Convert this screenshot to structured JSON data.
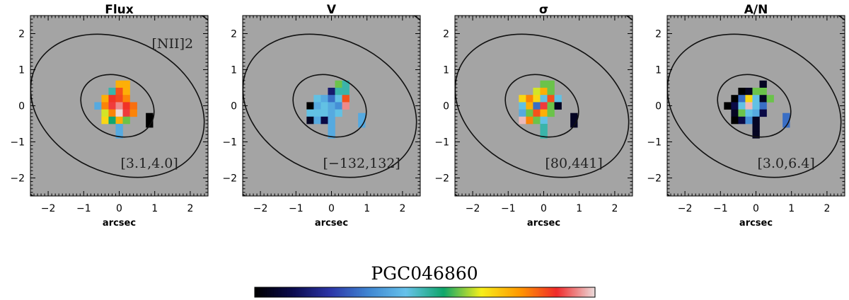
{
  "galaxy": "PGC046860",
  "colors": {
    "background_map": "#a4a4a4",
    "contour": "#111111",
    "colorbar_stops": [
      "#000000",
      "#0b0b4e",
      "#2c36a8",
      "#3f86d2",
      "#66c2ea",
      "#0ea66a",
      "#f6ef1b",
      "#ff9a00",
      "#f02a2a",
      "#ebd8d8"
    ]
  },
  "chart_data": [
    {
      "type": "heatmap",
      "title": "Flux",
      "corner_label": "[NII]2",
      "range_label": "[3.1,4.0]",
      "xlabel": "arcsec",
      "ylabel": "",
      "xlim": [
        -2.5,
        2.5
      ],
      "ylim": [
        -2.5,
        2.5
      ],
      "xticks": [
        "−2",
        "−1",
        "0",
        "1",
        "2"
      ],
      "yticks": [
        "2",
        "1",
        "0",
        "−1",
        "−2"
      ],
      "pixels": [
        {
          "x": 0.0,
          "y": 0.6,
          "v": 0.75
        },
        {
          "x": 0.2,
          "y": 0.6,
          "v": 0.75
        },
        {
          "x": -0.2,
          "y": 0.4,
          "v": 0.5
        },
        {
          "x": 0.0,
          "y": 0.4,
          "v": 0.85
        },
        {
          "x": 0.2,
          "y": 0.4,
          "v": 0.75
        },
        {
          "x": -0.4,
          "y": 0.2,
          "v": 0.75
        },
        {
          "x": -0.2,
          "y": 0.2,
          "v": 0.88
        },
        {
          "x": 0.0,
          "y": 0.2,
          "v": 0.86
        },
        {
          "x": 0.2,
          "y": 0.2,
          "v": 0.8
        },
        {
          "x": -0.6,
          "y": 0.0,
          "v": 0.4
        },
        {
          "x": -0.4,
          "y": 0.0,
          "v": 0.8
        },
        {
          "x": -0.2,
          "y": 0.0,
          "v": 0.9
        },
        {
          "x": 0.0,
          "y": 0.0,
          "v": 0.95
        },
        {
          "x": 0.2,
          "y": 0.0,
          "v": 0.88
        },
        {
          "x": 0.4,
          "y": 0.0,
          "v": 0.82
        },
        {
          "x": -0.4,
          "y": -0.2,
          "v": 0.65
        },
        {
          "x": -0.2,
          "y": -0.2,
          "v": 0.8
        },
        {
          "x": 0.0,
          "y": -0.2,
          "v": 1.0
        },
        {
          "x": 0.2,
          "y": -0.2,
          "v": 0.9
        },
        {
          "x": 0.4,
          "y": -0.2,
          "v": 0.8
        },
        {
          "x": 0.85,
          "y": -0.3,
          "v": 0.0
        },
        {
          "x": 0.85,
          "y": -0.5,
          "v": 0.0
        },
        {
          "x": -0.4,
          "y": -0.4,
          "v": 0.7
        },
        {
          "x": -0.2,
          "y": -0.4,
          "v": 0.55
        },
        {
          "x": 0.0,
          "y": -0.4,
          "v": 0.75
        },
        {
          "x": 0.2,
          "y": -0.4,
          "v": 0.6
        },
        {
          "x": 0.0,
          "y": -0.6,
          "v": 0.4
        },
        {
          "x": 0.0,
          "y": -0.8,
          "v": 0.4
        }
      ]
    },
    {
      "type": "heatmap",
      "title": "V",
      "corner_label": "",
      "range_label": "[−132,132]",
      "xlabel": "arcsec",
      "ylabel": "",
      "xlim": [
        -2.5,
        2.5
      ],
      "ylim": [
        -2.5,
        2.5
      ],
      "xticks": [
        "−2",
        "−1",
        "0",
        "1",
        "2"
      ],
      "yticks": [
        "2",
        "1",
        "0",
        "−1",
        "−2"
      ],
      "pixels": [
        {
          "x": 0.2,
          "y": 0.6,
          "v": 0.6
        },
        {
          "x": 0.4,
          "y": 0.6,
          "v": 0.5
        },
        {
          "x": 0.0,
          "y": 0.4,
          "v": 0.15
        },
        {
          "x": 0.2,
          "y": 0.4,
          "v": 0.5
        },
        {
          "x": 0.4,
          "y": 0.4,
          "v": 0.5
        },
        {
          "x": -0.4,
          "y": 0.2,
          "v": 0.45
        },
        {
          "x": -0.2,
          "y": 0.2,
          "v": 0.4
        },
        {
          "x": 0.0,
          "y": 0.2,
          "v": 0.3
        },
        {
          "x": 0.2,
          "y": 0.2,
          "v": 0.45
        },
        {
          "x": 0.4,
          "y": 0.2,
          "v": 0.85
        },
        {
          "x": -0.6,
          "y": 0.0,
          "v": 0.0
        },
        {
          "x": -0.4,
          "y": 0.0,
          "v": 0.4
        },
        {
          "x": -0.2,
          "y": 0.0,
          "v": 0.45
        },
        {
          "x": 0.0,
          "y": 0.0,
          "v": 0.4
        },
        {
          "x": 0.2,
          "y": 0.0,
          "v": 0.35
        },
        {
          "x": 0.4,
          "y": 0.0,
          "v": 0.95
        },
        {
          "x": -0.6,
          "y": -0.2,
          "v": 0.45
        },
        {
          "x": -0.4,
          "y": -0.2,
          "v": 0.45
        },
        {
          "x": -0.2,
          "y": -0.2,
          "v": 0.45
        },
        {
          "x": 0.0,
          "y": -0.2,
          "v": 0.4
        },
        {
          "x": 0.2,
          "y": -0.2,
          "v": 0.45
        },
        {
          "x": 0.85,
          "y": -0.3,
          "v": 0.4
        },
        {
          "x": 0.85,
          "y": -0.5,
          "v": 0.4
        },
        {
          "x": -0.6,
          "y": -0.4,
          "v": 0.05
        },
        {
          "x": -0.4,
          "y": -0.4,
          "v": 0.4
        },
        {
          "x": -0.2,
          "y": -0.4,
          "v": 0.1
        },
        {
          "x": 0.0,
          "y": -0.4,
          "v": 0.4
        },
        {
          "x": 0.0,
          "y": -0.6,
          "v": 0.4
        },
        {
          "x": 0.0,
          "y": -0.8,
          "v": 0.4
        }
      ]
    },
    {
      "type": "heatmap",
      "title": "σ",
      "corner_label": "",
      "range_label": "[80,441]",
      "xlabel": "arcsec",
      "ylabel": "",
      "xlim": [
        -2.5,
        2.5
      ],
      "ylim": [
        -2.5,
        2.5
      ],
      "xticks": [
        "−2",
        "−1",
        "0",
        "1",
        "2"
      ],
      "yticks": [
        "2",
        "1",
        "0",
        "−1",
        "−2"
      ],
      "pixels": [
        {
          "x": 0.0,
          "y": 0.6,
          "v": 0.6
        },
        {
          "x": 0.2,
          "y": 0.6,
          "v": 0.6
        },
        {
          "x": -0.2,
          "y": 0.4,
          "v": 0.65
        },
        {
          "x": 0.0,
          "y": 0.4,
          "v": 0.75
        },
        {
          "x": 0.2,
          "y": 0.4,
          "v": 0.6
        },
        {
          "x": -0.6,
          "y": 0.2,
          "v": 0.7
        },
        {
          "x": -0.4,
          "y": 0.2,
          "v": 0.8
        },
        {
          "x": -0.2,
          "y": 0.2,
          "v": 0.7
        },
        {
          "x": 0.0,
          "y": 0.2,
          "v": 0.45
        },
        {
          "x": 0.2,
          "y": 0.2,
          "v": 0.85
        },
        {
          "x": 0.4,
          "y": 0.2,
          "v": 0.45
        },
        {
          "x": -0.6,
          "y": 0.0,
          "v": 0.45
        },
        {
          "x": -0.4,
          "y": 0.0,
          "v": 0.75
        },
        {
          "x": -0.2,
          "y": 0.0,
          "v": 0.3
        },
        {
          "x": 0.0,
          "y": 0.0,
          "v": 0.9
        },
        {
          "x": 0.2,
          "y": 0.0,
          "v": 0.6
        },
        {
          "x": 0.4,
          "y": 0.0,
          "v": 0.05
        },
        {
          "x": -0.6,
          "y": -0.2,
          "v": 0.4
        },
        {
          "x": -0.4,
          "y": -0.2,
          "v": 0.6
        },
        {
          "x": -0.2,
          "y": -0.2,
          "v": 0.85
        },
        {
          "x": 0.0,
          "y": -0.2,
          "v": 0.75
        },
        {
          "x": 0.2,
          "y": -0.2,
          "v": 0.6
        },
        {
          "x": 0.85,
          "y": -0.3,
          "v": 0.05
        },
        {
          "x": 0.85,
          "y": -0.5,
          "v": 0.05
        },
        {
          "x": -0.6,
          "y": -0.4,
          "v": 0.98
        },
        {
          "x": -0.4,
          "y": -0.4,
          "v": 0.8
        },
        {
          "x": -0.2,
          "y": -0.4,
          "v": 0.6
        },
        {
          "x": 0.0,
          "y": -0.4,
          "v": 0.45
        },
        {
          "x": 0.0,
          "y": -0.6,
          "v": 0.5
        },
        {
          "x": 0.0,
          "y": -0.8,
          "v": 0.5
        }
      ]
    },
    {
      "type": "heatmap",
      "title": "A/N",
      "corner_label": "",
      "range_label": "[3.0,6.4]",
      "xlabel": "arcsec",
      "ylabel": "",
      "xlim": [
        -2.5,
        2.5
      ],
      "ylim": [
        -2.5,
        2.5
      ],
      "xticks": [
        "−2",
        "−1",
        "0",
        "1",
        "2"
      ],
      "yticks": [
        "2",
        "1",
        "0",
        "−1",
        "−2"
      ],
      "pixels": [
        {
          "x": 0.2,
          "y": 0.6,
          "v": 0.05
        },
        {
          "x": -0.4,
          "y": 0.4,
          "v": 0.0
        },
        {
          "x": -0.2,
          "y": 0.4,
          "v": 0.05
        },
        {
          "x": 0.0,
          "y": 0.4,
          "v": 0.6
        },
        {
          "x": 0.2,
          "y": 0.4,
          "v": 0.6
        },
        {
          "x": -0.6,
          "y": 0.2,
          "v": 0.0
        },
        {
          "x": -0.4,
          "y": 0.2,
          "v": 0.3
        },
        {
          "x": -0.2,
          "y": 0.2,
          "v": 0.7
        },
        {
          "x": 0.0,
          "y": 0.2,
          "v": 0.45
        },
        {
          "x": 0.2,
          "y": 0.2,
          "v": 0.05
        },
        {
          "x": 0.4,
          "y": 0.2,
          "v": 0.6
        },
        {
          "x": -0.8,
          "y": 0.0,
          "v": 0.0
        },
        {
          "x": -0.6,
          "y": 0.0,
          "v": 0.1
        },
        {
          "x": -0.4,
          "y": 0.0,
          "v": 0.45
        },
        {
          "x": -0.2,
          "y": 0.0,
          "v": 0.98
        },
        {
          "x": 0.0,
          "y": 0.0,
          "v": 0.45
        },
        {
          "x": 0.2,
          "y": 0.0,
          "v": 0.3
        },
        {
          "x": -0.6,
          "y": -0.2,
          "v": 0.05
        },
        {
          "x": -0.4,
          "y": -0.2,
          "v": 0.6
        },
        {
          "x": -0.2,
          "y": -0.2,
          "v": 0.45
        },
        {
          "x": 0.0,
          "y": -0.2,
          "v": 0.4
        },
        {
          "x": 0.2,
          "y": -0.2,
          "v": 0.1
        },
        {
          "x": 0.85,
          "y": -0.3,
          "v": 0.3
        },
        {
          "x": 0.85,
          "y": -0.5,
          "v": 0.3
        },
        {
          "x": -0.6,
          "y": -0.4,
          "v": 0.0
        },
        {
          "x": -0.4,
          "y": -0.4,
          "v": 0.1
        },
        {
          "x": -0.2,
          "y": -0.4,
          "v": 0.35
        },
        {
          "x": 0.0,
          "y": -0.4,
          "v": 0.05
        },
        {
          "x": 0.0,
          "y": -0.6,
          "v": 0.05
        },
        {
          "x": 0.0,
          "y": -0.8,
          "v": 0.05
        }
      ]
    }
  ]
}
